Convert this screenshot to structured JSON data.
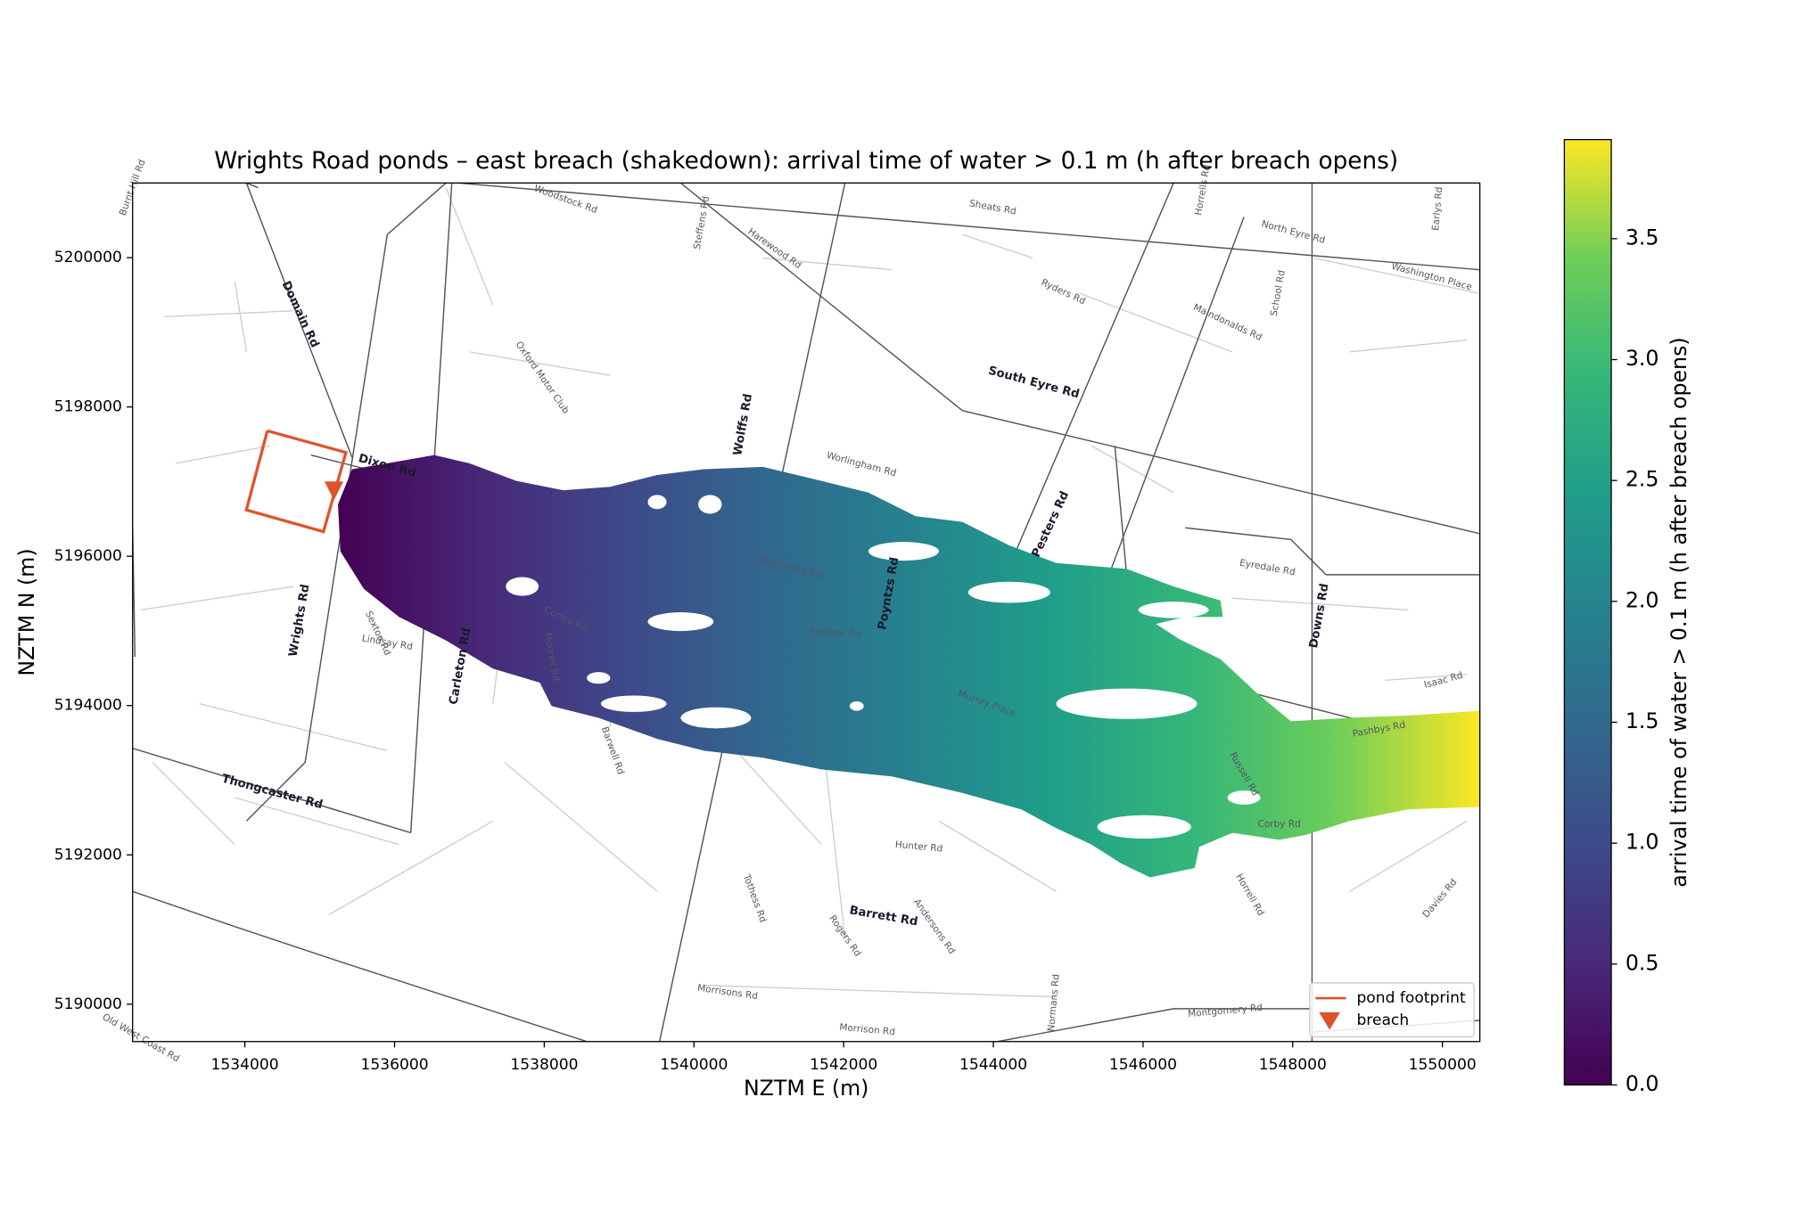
{
  "chart_data": {
    "type": "flood-map",
    "title": "Wrights Road ponds – east breach (shakedown): arrival time of water > 0.1 m (h after breach opens)",
    "x_label": "NZTM E (m)",
    "y_label": "NZTM N (m)",
    "xlim": [
      1532500,
      1550500
    ],
    "ylim": [
      5189500,
      5201000
    ],
    "xticks": [
      1534000,
      1536000,
      1538000,
      1540000,
      1542000,
      1544000,
      1546000,
      1548000,
      1550000
    ],
    "yticks": [
      5190000,
      5192000,
      5194000,
      5196000,
      5198000,
      5200000
    ],
    "colormap": "viridis",
    "clim": [
      0,
      3.91
    ],
    "colorbar_label": "arrival time of water > 0.1 m (h after breach opens)",
    "colorbar_ticks": [
      {
        "value": 0,
        "label": "0.0"
      },
      {
        "value": 0.5,
        "label": "0.5"
      },
      {
        "value": 1,
        "label": "1.0"
      },
      {
        "value": 1.5,
        "label": "1.5"
      },
      {
        "value": 2,
        "label": "2.0"
      },
      {
        "value": 2.5,
        "label": "2.5"
      },
      {
        "value": 3,
        "label": "3.0"
      },
      {
        "value": 3.5,
        "label": "3.5"
      }
    ],
    "pond_footprint": {
      "name": "pond footprint",
      "color": "#e0532a",
      "x": [
        1534300,
        1535350,
        1535050,
        1534020,
        1534300
      ],
      "y": [
        5197680,
        5197390,
        5196330,
        5196620,
        5197680
      ]
    },
    "breach": {
      "name": "breach",
      "color": "#e0532a",
      "x": 1535190,
      "y": 5196860
    },
    "legend": "lower right",
    "road_labels": [
      "Burnt Hill Rd",
      "Woodstock Rd",
      "Steffens Rd",
      "Harewood Rd",
      "Sheats Rd",
      "Horrells Rd",
      "North Eyre Rd",
      "Earlys Rd",
      "Washington Place",
      "Domain Rd",
      "Ryders Rd",
      "School Rd",
      "Maindonalds Rd",
      "Oxford Motor Club",
      "South Eyre Rd",
      "Wolffs Rd",
      "Dixon Rd",
      "Worlingham Rd",
      "Pesters Rd",
      "Main Race Rd",
      "Eyredale Rd",
      "Poyntzs Rd",
      "Corfey Rd",
      "Perham Rd",
      "Downs Rd",
      "Wrights Rd",
      "Sexton Rd",
      "Lindsay Rd",
      "Carleton Rd",
      "Moores Rd",
      "Isaac Rd",
      "Murray Place",
      "Pashbys Rd",
      "Barwell Rd",
      "Russell Rd",
      "Thongcaster Rd",
      "Corby Rd",
      "Hunter Rd",
      "Tothess Rd",
      "Horrell Rd",
      "Barrett Rd",
      "Andersons Rd",
      "Rogers Rd",
      "Davies Rd",
      "Normans Rd",
      "Morrisons Rd",
      "Morrison Rd",
      "Montgomery Rd",
      "Old West Coast Rd"
    ]
  }
}
